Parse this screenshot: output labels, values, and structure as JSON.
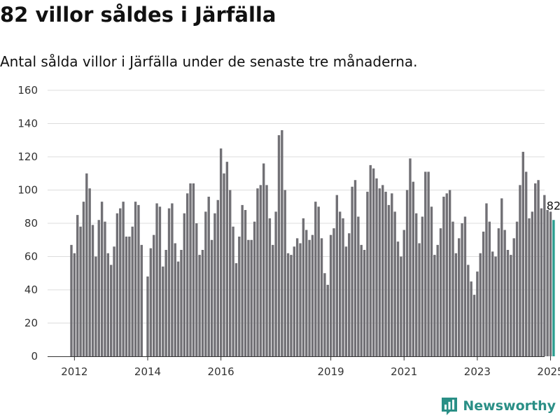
{
  "header": {
    "title": "82 villor såldes i Järfälla",
    "subtitle": "Antal sålda villor i Järfälla under de senaste tre månaderna."
  },
  "brand": {
    "name": "Newsworthy",
    "icon": "bar-chart-logo-icon"
  },
  "colors": {
    "bar": "#717075",
    "highlight": "#2a9d8f",
    "grid": "#dcdcdc",
    "axis": "#333333",
    "brand": "#2a8f86"
  },
  "chart_data": {
    "type": "bar",
    "title": "82 villor såldes i Järfälla",
    "subtitle": "Antal sålda villor i Järfälla under de senaste tre månaderna.",
    "xlabel": "",
    "ylabel": "",
    "ylim": [
      0,
      160
    ],
    "yticks": [
      0,
      20,
      40,
      60,
      80,
      100,
      120,
      140,
      160
    ],
    "xticks": [
      "2012",
      "2014",
      "2016",
      "2019",
      "2021",
      "2023",
      "2025"
    ],
    "grid": true,
    "x_start": "2011-12",
    "highlight_label": "82",
    "values": [
      67,
      62,
      85,
      78,
      93,
      110,
      101,
      79,
      60,
      82,
      93,
      81,
      62,
      55,
      66,
      86,
      89,
      93,
      72,
      72,
      78,
      93,
      91,
      67,
      0,
      48,
      65,
      73,
      92,
      90,
      54,
      64,
      89,
      92,
      68,
      57,
      64,
      86,
      98,
      104,
      104,
      80,
      61,
      64,
      87,
      96,
      70,
      86,
      94,
      125,
      110,
      117,
      100,
      78,
      56,
      72,
      91,
      88,
      70,
      70,
      81,
      101,
      103,
      116,
      103,
      83,
      67,
      87,
      133,
      136,
      100,
      62,
      61,
      66,
      71,
      68,
      83,
      76,
      70,
      73,
      93,
      90,
      71,
      50,
      43,
      73,
      77,
      97,
      87,
      83,
      66,
      74,
      102,
      106,
      84,
      67,
      64,
      99,
      115,
      113,
      107,
      101,
      103,
      99,
      91,
      98,
      87,
      69,
      60,
      76,
      100,
      119,
      105,
      86,
      68,
      84,
      111,
      111,
      90,
      61,
      67,
      77,
      96,
      98,
      100,
      81,
      62,
      71,
      80,
      84,
      55,
      45,
      37,
      51,
      62,
      75,
      92,
      81,
      63,
      60,
      77,
      95,
      76,
      64,
      61,
      71,
      81,
      103,
      123,
      111,
      83,
      87,
      104,
      106,
      89,
      97,
      88,
      87,
      82
    ]
  }
}
